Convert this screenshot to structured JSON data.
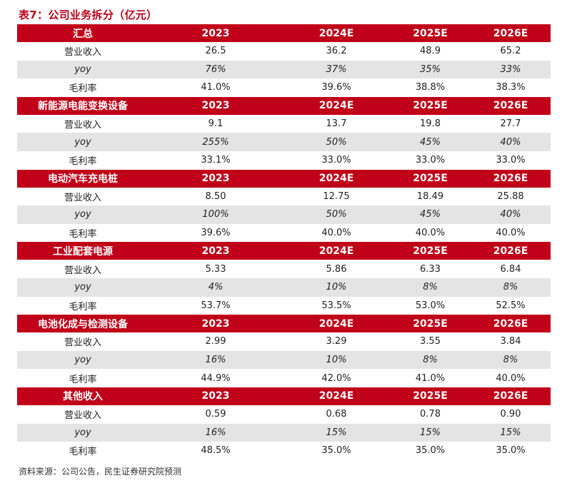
{
  "title": "表7：公司业务拆分（亿元）",
  "source": "资料来源：公司公告，民生证券研究院预测",
  "years": [
    "2023",
    "2024E",
    "2025E",
    "2026E"
  ],
  "sections": [
    {
      "name": "汇总",
      "rows": [
        {
          "label": "营业收入",
          "values": [
            "26.5",
            "36.2",
            "48.9",
            "65.2"
          ]
        },
        {
          "label": "yoy",
          "values": [
            "76%",
            "37%",
            "35%",
            "33%"
          ]
        },
        {
          "label": "毛利率",
          "values": [
            "41.0%",
            "39.6%",
            "38.8%",
            "38.3%"
          ]
        }
      ]
    },
    {
      "name": "新能源电能变换设备",
      "rows": [
        {
          "label": "营业收入",
          "values": [
            "9.1",
            "13.7",
            "19.8",
            "27.7"
          ]
        },
        {
          "label": "yoy",
          "values": [
            "255%",
            "50%",
            "45%",
            "40%"
          ]
        },
        {
          "label": "毛利率",
          "values": [
            "33.1%",
            "33.0%",
            "33.0%",
            "33.0%"
          ]
        }
      ]
    },
    {
      "name": "电动汽车充电桩",
      "rows": [
        {
          "label": "营业收入",
          "values": [
            "8.50",
            "12.75",
            "18.49",
            "25.88"
          ]
        },
        {
          "label": "yoy",
          "values": [
            "100%",
            "50%",
            "45%",
            "40%"
          ]
        },
        {
          "label": "毛利率",
          "values": [
            "39.6%",
            "40.0%",
            "40.0%",
            "40.0%"
          ]
        }
      ]
    },
    {
      "name": "工业配套电源",
      "rows": [
        {
          "label": "营业收入",
          "values": [
            "5.33",
            "5.86",
            "6.33",
            "6.84"
          ]
        },
        {
          "label": "yoy",
          "values": [
            "4%",
            "10%",
            "8%",
            "8%"
          ]
        },
        {
          "label": "毛利率",
          "values": [
            "53.7%",
            "53.5%",
            "53.0%",
            "52.5%"
          ]
        }
      ]
    },
    {
      "name": "电池化成与检测设备",
      "rows": [
        {
          "label": "营业收入",
          "values": [
            "2.99",
            "3.29",
            "3.55",
            "3.84"
          ]
        },
        {
          "label": "yoy",
          "values": [
            "16%",
            "10%",
            "8%",
            "8%"
          ]
        },
        {
          "label": "毛利率",
          "values": [
            "44.9%",
            "42.0%",
            "41.0%",
            "40.0%"
          ]
        }
      ]
    },
    {
      "name": "其他收入",
      "rows": [
        {
          "label": "营业收入",
          "values": [
            "0.59",
            "0.68",
            "0.78",
            "0.90"
          ]
        },
        {
          "label": "yoy",
          "values": [
            "16%",
            "15%",
            "15%",
            "15%"
          ]
        },
        {
          "label": "毛利率",
          "values": [
            "48.5%",
            "35.0%",
            "35.0%",
            "35.0%"
          ]
        }
      ]
    }
  ],
  "colors": {
    "header_bg": "#c00018",
    "title": "#b8001a",
    "alt_row_bg": "#e4e4e4"
  }
}
